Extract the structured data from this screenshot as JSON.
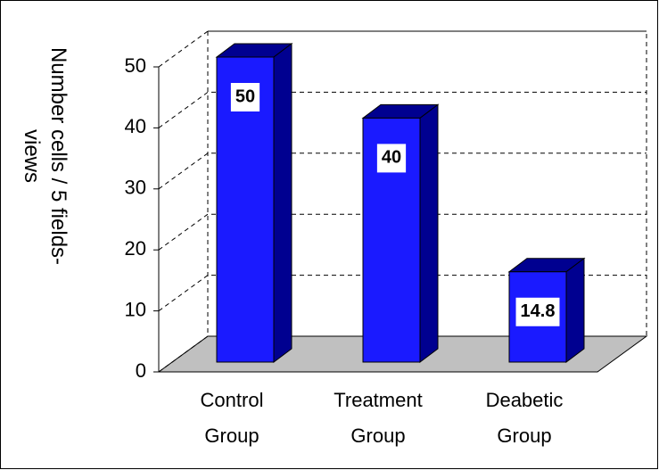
{
  "chart_data": {
    "type": "bar3d",
    "y_label": "Number cells / 5 fields-views",
    "categories": [
      "Control Group",
      "Treatment Group",
      "Deabetic Group"
    ],
    "values": [
      50,
      40,
      14.8
    ],
    "color": "#1a1aff",
    "ylim": [
      0,
      50
    ],
    "yticks": [
      0,
      10,
      20,
      30,
      40,
      50
    ],
    "grid": true
  }
}
